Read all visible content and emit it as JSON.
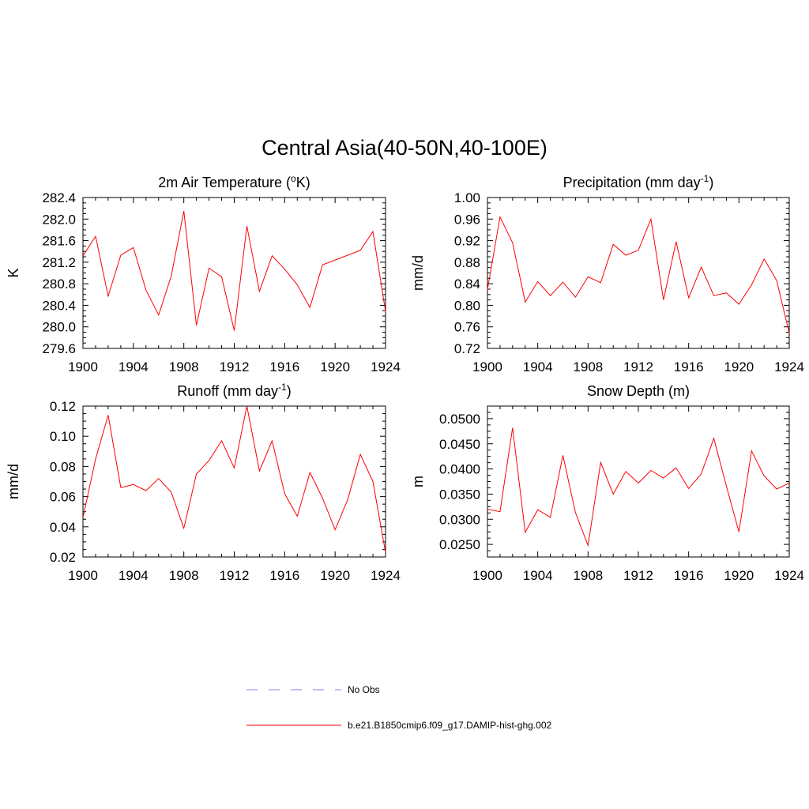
{
  "figure": {
    "title": "Central Asia(40-50N,40-100E)"
  },
  "legend": {
    "obs_label": "No Obs",
    "obs_color": "#9999ee",
    "model_label": "b.e21.B1850cmip6.f09_g17.DAMIP-hist-ghg.002",
    "model_color": "#ff0000"
  },
  "chart_data": [
    {
      "type": "line",
      "title": "2m Air Temperature (°K)",
      "title_parts": [
        "2m Air Temperature (",
        "o",
        "K)"
      ],
      "ylabel": "K",
      "xlim": [
        1900,
        1924
      ],
      "ylim": [
        279.6,
        282.4
      ],
      "xticks": [
        "1900",
        "1904",
        "1908",
        "1912",
        "1916",
        "1920",
        "1924"
      ],
      "yticks": [
        "279.6",
        "280.0",
        "280.4",
        "280.8",
        "281.2",
        "281.6",
        "282.0",
        "282.4"
      ],
      "x": [
        1900,
        1901,
        1902,
        1903,
        1904,
        1905,
        1906,
        1907,
        1908,
        1909,
        1910,
        1911,
        1912,
        1913,
        1914,
        1915,
        1916,
        1917,
        1918,
        1919,
        1920,
        1921,
        1922,
        1923,
        1924
      ],
      "series": [
        {
          "color": "#ff0000",
          "values": [
            281.32,
            281.68,
            280.57,
            281.33,
            281.47,
            280.68,
            280.22,
            280.94,
            282.15,
            280.03,
            281.09,
            280.93,
            279.93,
            281.87,
            280.66,
            281.32,
            281.07,
            280.78,
            280.36,
            281.15,
            281.24,
            281.33,
            281.42,
            281.77,
            280.28
          ]
        }
      ]
    },
    {
      "type": "line",
      "title": "Precipitation (mm day-1)",
      "title_parts": [
        "Precipitation (mm day",
        "-1",
        ")"
      ],
      "ylabel": "mm/d",
      "xlim": [
        1900,
        1924
      ],
      "ylim": [
        0.72,
        1.0
      ],
      "xticks": [
        "1900",
        "1904",
        "1908",
        "1912",
        "1916",
        "1920",
        "1924"
      ],
      "yticks": [
        "0.72",
        "0.76",
        "0.80",
        "0.84",
        "0.88",
        "0.92",
        "0.96",
        "1.00"
      ],
      "x": [
        1900,
        1901,
        1902,
        1903,
        1904,
        1905,
        1906,
        1907,
        1908,
        1909,
        1910,
        1911,
        1912,
        1913,
        1914,
        1915,
        1916,
        1917,
        1918,
        1919,
        1920,
        1921,
        1922,
        1923,
        1924
      ],
      "series": [
        {
          "color": "#ff0000",
          "values": [
            0.829,
            0.964,
            0.916,
            0.806,
            0.844,
            0.818,
            0.843,
            0.815,
            0.853,
            0.842,
            0.913,
            0.893,
            0.902,
            0.96,
            0.81,
            0.918,
            0.814,
            0.871,
            0.818,
            0.823,
            0.802,
            0.838,
            0.886,
            0.846,
            0.748
          ]
        }
      ]
    },
    {
      "type": "line",
      "title": "Runoff (mm day-1)",
      "title_parts": [
        "Runoff (mm day",
        "-1",
        ")"
      ],
      "ylabel": "mm/d",
      "xlim": [
        1900,
        1924
      ],
      "ylim": [
        0.02,
        0.12
      ],
      "xticks": [
        "1900",
        "1904",
        "1908",
        "1912",
        "1916",
        "1920",
        "1924"
      ],
      "yticks": [
        "0.02",
        "0.04",
        "0.06",
        "0.08",
        "0.10",
        "0.12"
      ],
      "x": [
        1900,
        1901,
        1902,
        1903,
        1904,
        1905,
        1906,
        1907,
        1908,
        1909,
        1910,
        1911,
        1912,
        1913,
        1914,
        1915,
        1916,
        1917,
        1918,
        1919,
        1920,
        1921,
        1922,
        1923,
        1924
      ],
      "series": [
        {
          "color": "#ff0000",
          "values": [
            0.046,
            0.085,
            0.114,
            0.066,
            0.068,
            0.064,
            0.072,
            0.063,
            0.039,
            0.075,
            0.084,
            0.097,
            0.079,
            0.12,
            0.077,
            0.097,
            0.062,
            0.047,
            0.076,
            0.059,
            0.038,
            0.058,
            0.088,
            0.07,
            0.023
          ]
        }
      ]
    },
    {
      "type": "line",
      "title": "Snow Depth (m)",
      "title_parts": [
        "Snow Depth (m)",
        "",
        ""
      ],
      "ylabel": "m",
      "xlim": [
        1900,
        1924
      ],
      "ylim": [
        0.0225,
        0.0525
      ],
      "xticks": [
        "1900",
        "1904",
        "1908",
        "1912",
        "1916",
        "1920",
        "1924"
      ],
      "yticks": [
        "0.0250",
        "0.0300",
        "0.0350",
        "0.0400",
        "0.0450",
        "0.0500"
      ],
      "x": [
        1900,
        1901,
        1902,
        1903,
        1904,
        1905,
        1906,
        1907,
        1908,
        1909,
        1910,
        1911,
        1912,
        1913,
        1914,
        1915,
        1916,
        1917,
        1918,
        1919,
        1920,
        1921,
        1922,
        1923,
        1924
      ],
      "series": [
        {
          "color": "#ff0000",
          "values": [
            0.032,
            0.0315,
            0.0482,
            0.0274,
            0.0319,
            0.0304,
            0.0427,
            0.0313,
            0.0248,
            0.0413,
            0.035,
            0.0395,
            0.0372,
            0.0397,
            0.0382,
            0.0402,
            0.0361,
            0.039,
            0.0461,
            0.0366,
            0.0275,
            0.0436,
            0.0386,
            0.036,
            0.0372
          ]
        }
      ]
    }
  ]
}
